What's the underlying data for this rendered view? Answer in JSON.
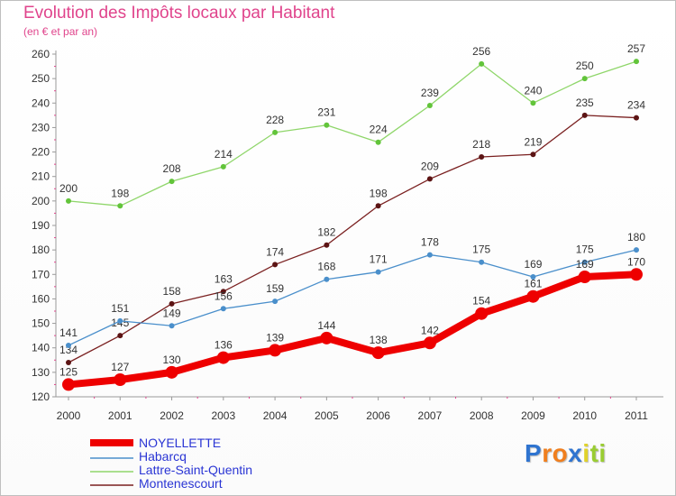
{
  "chart_data": {
    "type": "line",
    "title": "Evolution des Impôts locaux par Habitant",
    "subtitle": "(en € et par an)",
    "categories": [
      "2000",
      "2001",
      "2002",
      "2003",
      "2004",
      "2005",
      "2006",
      "2007",
      "2008",
      "2009",
      "2010",
      "2011"
    ],
    "ylim": [
      120,
      260
    ],
    "yticks": [
      120,
      130,
      140,
      150,
      160,
      170,
      180,
      190,
      200,
      210,
      220,
      230,
      240,
      250,
      260
    ],
    "grid": false,
    "legend_position": "bottom-left",
    "series": [
      {
        "name": "NOYELLETTE",
        "color": "#ee0000",
        "emphasis": true,
        "values": [
          125,
          127,
          130,
          136,
          139,
          144,
          138,
          142,
          154,
          161,
          169,
          170
        ]
      },
      {
        "name": "Habarcq",
        "color": "#4a8fcb",
        "values": [
          141,
          151,
          149,
          156,
          159,
          168,
          171,
          178,
          175,
          169,
          175,
          180
        ]
      },
      {
        "name": "Lattre-Saint-Quentin",
        "color": "#8fd66a",
        "marker_color": "#62c43a",
        "values": [
          200,
          198,
          208,
          214,
          228,
          231,
          224,
          239,
          256,
          240,
          250,
          257
        ]
      },
      {
        "name": "Montenescourt",
        "color": "#7a2020",
        "marker_color": "#5c1414",
        "values": [
          134,
          145,
          158,
          163,
          174,
          182,
          198,
          209,
          218,
          219,
          235,
          234
        ]
      }
    ]
  },
  "brand": {
    "letters": [
      "P",
      "r",
      "o",
      "x",
      "i",
      "t",
      "i"
    ],
    "colors": [
      "#2f74d0",
      "#f07f1e",
      "#f07f1e",
      "#2f74d0",
      "#e0d22a",
      "#9acd32",
      "#9acd32"
    ]
  }
}
